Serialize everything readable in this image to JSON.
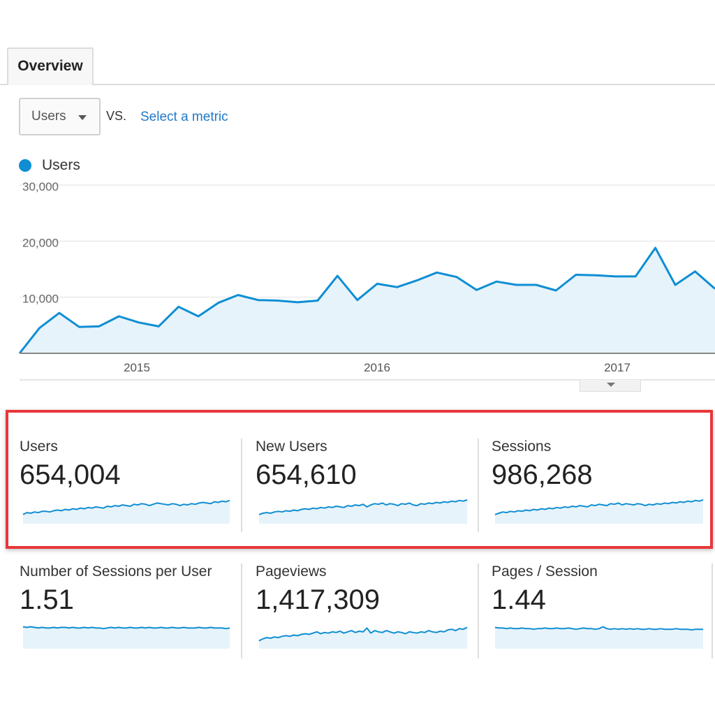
{
  "tabs": [
    {
      "label": "Overview"
    }
  ],
  "compare": {
    "metric": "Users",
    "vs_text": "VS.",
    "select_metric_link": "Select a metric"
  },
  "legend": {
    "series_name": "Users",
    "color": "#0f8ed3"
  },
  "chart_data": {
    "type": "area",
    "series": [
      {
        "name": "Users",
        "color": "#0f8ed3",
        "values": [
          0,
          4500,
          7200,
          4700,
          4800,
          6600,
          5500,
          4800,
          8300,
          6600,
          9000,
          10400,
          9500,
          9400,
          9100,
          9400,
          13800,
          9500,
          12400,
          11800,
          13000,
          14400,
          13600,
          11300,
          12800,
          12200,
          12200,
          11200,
          14000,
          13900,
          13700,
          13700,
          18800,
          12200,
          14600,
          11500
        ]
      }
    ],
    "x_ticks": [
      "2015",
      "2016",
      "2017"
    ],
    "y_ticks": [
      "30,000",
      "20,000",
      "10,000"
    ],
    "ylim": [
      0,
      30000
    ],
    "grid": true
  },
  "metrics": [
    {
      "label": "Users",
      "value": "654,004",
      "trend": [
        10,
        13,
        12,
        14,
        13,
        15,
        15,
        14,
        16,
        17,
        16,
        18,
        17,
        19,
        18,
        20,
        19,
        21,
        20,
        22,
        21,
        20,
        23,
        22,
        24,
        23,
        25,
        24,
        23,
        26,
        25,
        27,
        26,
        24,
        26,
        28,
        27,
        26,
        25,
        27,
        26,
        24,
        26,
        25,
        27,
        26,
        28,
        29,
        28,
        27,
        30,
        29,
        31,
        30,
        32
      ]
    },
    {
      "label": "New Users",
      "value": "654,610",
      "trend": [
        10,
        12,
        13,
        12,
        14,
        15,
        14,
        16,
        15,
        17,
        16,
        18,
        19,
        18,
        20,
        19,
        21,
        20,
        22,
        21,
        23,
        22,
        21,
        24,
        23,
        25,
        24,
        26,
        22,
        25,
        27,
        26,
        28,
        25,
        27,
        26,
        24,
        27,
        26,
        28,
        25,
        24,
        27,
        26,
        28,
        27,
        29,
        28,
        30,
        29,
        31,
        30,
        32,
        31,
        33
      ]
    },
    {
      "label": "Sessions",
      "value": "986,268",
      "trend": [
        10,
        12,
        14,
        13,
        15,
        14,
        16,
        15,
        17,
        16,
        18,
        17,
        19,
        18,
        20,
        19,
        21,
        20,
        22,
        21,
        23,
        22,
        24,
        23,
        22,
        25,
        24,
        26,
        25,
        24,
        27,
        26,
        28,
        25,
        27,
        26,
        25,
        27,
        26,
        24,
        26,
        25,
        27,
        26,
        28,
        27,
        29,
        28,
        30,
        29,
        31,
        30,
        32,
        31,
        33
      ]
    },
    {
      "label": "Number of Sessions per User",
      "value": "1.51",
      "trend": [
        30,
        29,
        30,
        29,
        28,
        29,
        28,
        28,
        29,
        28,
        29,
        29,
        28,
        29,
        28,
        28,
        29,
        28,
        29,
        28,
        28,
        27,
        28,
        29,
        28,
        29,
        28,
        28,
        29,
        28,
        28,
        29,
        28,
        29,
        28,
        28,
        29,
        28,
        28,
        29,
        28,
        28,
        29,
        28,
        28,
        28,
        29,
        28,
        28,
        29,
        28,
        28,
        28,
        27,
        28
      ]
    },
    {
      "label": "Pageviews",
      "value": "1,417,309",
      "trend": [
        8,
        11,
        13,
        12,
        14,
        13,
        15,
        16,
        15,
        17,
        16,
        18,
        19,
        18,
        20,
        22,
        19,
        21,
        20,
        22,
        21,
        23,
        20,
        22,
        24,
        21,
        23,
        22,
        28,
        20,
        24,
        22,
        21,
        24,
        22,
        20,
        22,
        21,
        19,
        22,
        21,
        20,
        22,
        21,
        24,
        22,
        21,
        23,
        22,
        25,
        26,
        24,
        27,
        26,
        29
      ]
    },
    {
      "label": "Pages / Session",
      "value": "1.44",
      "trend": [
        29,
        28,
        28,
        27,
        28,
        27,
        27,
        28,
        27,
        27,
        26,
        27,
        27,
        28,
        27,
        27,
        28,
        27,
        27,
        28,
        27,
        26,
        27,
        28,
        27,
        27,
        26,
        27,
        30,
        27,
        26,
        27,
        26,
        27,
        26,
        27,
        26,
        27,
        26,
        26,
        27,
        26,
        26,
        27,
        26,
        26,
        26,
        27,
        26,
        26,
        26,
        25,
        26,
        26,
        26
      ]
    }
  ],
  "colors": {
    "accent": "#0f8ed3",
    "area_fill": "#e6f3fa",
    "highlight": "#e8373a",
    "link": "#1f78c8"
  }
}
